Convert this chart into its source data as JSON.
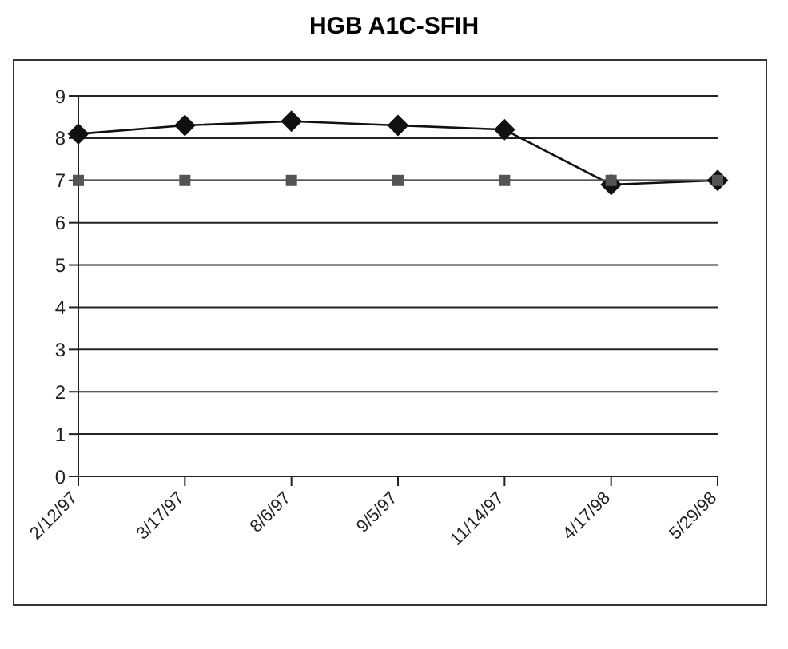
{
  "chart_data": {
    "type": "line",
    "title": "HGB A1C-SFIH",
    "categories": [
      "2/12/97",
      "3/17/97",
      "8/6/97",
      "9/5/97",
      "11/14/97",
      "4/17/98",
      "5/29/98"
    ],
    "series": [
      {
        "color": "#111111",
        "marker": "diamond",
        "values": [
          8.1,
          8.3,
          8.4,
          8.3,
          8.2,
          6.9,
          7.0
        ]
      },
      {
        "color": "#555555",
        "marker": "square",
        "values": [
          7,
          7,
          7,
          7,
          7,
          7,
          7
        ]
      }
    ],
    "ylim": [
      0,
      9
    ],
    "yticks": [
      0,
      1,
      2,
      3,
      4,
      5,
      6,
      7,
      8,
      9
    ],
    "grid": "y",
    "legend": false,
    "line_style": "solid"
  }
}
